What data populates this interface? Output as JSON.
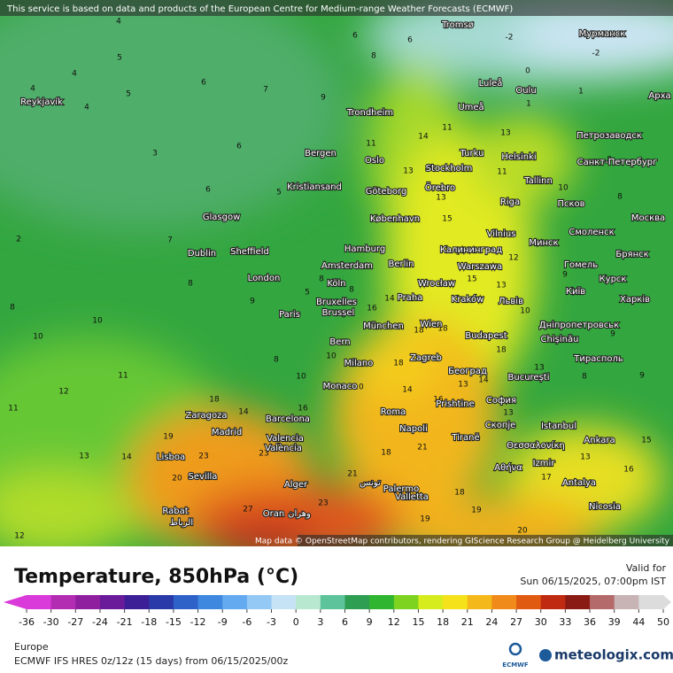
{
  "header": {
    "attribution": "This service is based on data and products of the European Centre for Medium-range Weather Forecasts (ECMWF)"
  },
  "map": {
    "cities": [
      "Tromsø",
      "Мурманск",
      "Luleå",
      "Oulu",
      "Арха",
      "Reykjavík",
      "Trondheim",
      "Umeå",
      "Петрозаводск",
      "Bergen",
      "Oslo",
      "Turku",
      "Helsinki",
      "Санкт-Петербург",
      "Stockholm",
      "Kristiansand",
      "Göteborg",
      "Örebro",
      "Tallinn",
      "Псков",
      "Glasgow",
      "København",
      "Riga",
      "Москва",
      "Vilnius",
      "Минск",
      "Смоленск",
      "Dublin",
      "Sheffield",
      "Hamburg",
      "Калининград",
      "Брянск",
      "Amsterdam",
      "Berlin",
      "Warszawa",
      "Гомель",
      "London",
      "Köln",
      "Wrocław",
      "Kraków",
      "Київ",
      "Курск",
      "Bruxelles",
      "Brussel",
      "Praha",
      "Львів",
      "Харків",
      "Paris",
      "München",
      "Wien",
      "Дніпропетровськ",
      "Bern",
      "Budapest",
      "Chișinău",
      "Milano",
      "Zagreb",
      "Тирасполь",
      "Београд",
      "București",
      "Monaco",
      "Prishtine",
      "София",
      "Zaragoza",
      "Roma",
      "Barcelona",
      "Istanbul",
      "Madrid",
      "Napoli",
      "Valencia",
      "València",
      "Скопје",
      "Tiranë",
      "Θεσσαλονίκη",
      "Ankara",
      "Lisboa",
      "Izmir",
      "Αθήνα",
      "Sevilla",
      "Alger",
      "تونس",
      "Antalya",
      "Palermo",
      "Valletta",
      "Rabat",
      "الرباط",
      "Oran",
      "وهران",
      "Nicosia"
    ],
    "temperature_labels": [
      6,
      8,
      6,
      4,
      5,
      4,
      4,
      4,
      5,
      3,
      6,
      7,
      6,
      6,
      5,
      9,
      11,
      14,
      13,
      11,
      13,
      15,
      13,
      11,
      1,
      1,
      0,
      -2,
      -2,
      10,
      8,
      8,
      2,
      7,
      8,
      9,
      8,
      10,
      10,
      11,
      12,
      11,
      13,
      14,
      19,
      23,
      20,
      23,
      27,
      23,
      21,
      18,
      21,
      16,
      13,
      13,
      19,
      19,
      18,
      17,
      13,
      16,
      15,
      20,
      14,
      16,
      18,
      14,
      10,
      10,
      10,
      18,
      14,
      18,
      13,
      15,
      14,
      10,
      12,
      9,
      9,
      9,
      8,
      13,
      18,
      8,
      8,
      8,
      5,
      8,
      18,
      14,
      16,
      12
    ],
    "credits": "Map data © OpenStreetMap contributors, rendering GIScience Research Group @ Heidelberg University"
  },
  "legend": {
    "title": "Temperature, 850hPa (°C)",
    "valid_label": "Valid for",
    "valid_time": "Sun 06/15/2025, 07:00pm IST",
    "ticks": [
      -36,
      -30,
      -27,
      -24,
      -21,
      -18,
      -15,
      -12,
      -9,
      -6,
      -3,
      0,
      3,
      6,
      9,
      12,
      15,
      18,
      21,
      24,
      27,
      30,
      33,
      36,
      39,
      44,
      50
    ],
    "colors": [
      "#d93ad9",
      "#b32db3",
      "#8f1f9f",
      "#6a1b9a",
      "#3c1e96",
      "#2a3aa8",
      "#2f62c8",
      "#3f88e0",
      "#64aaf0",
      "#94c8f5",
      "#c6e2f5",
      "#b8e8d0",
      "#5cc39a",
      "#2e9e52",
      "#2fb52f",
      "#7ed321",
      "#d6ec1c",
      "#f5e21a",
      "#f5b81a",
      "#f08a1a",
      "#e05a12",
      "#c02a10",
      "#8a1a14",
      "#b46a6a",
      "#c8b4b4",
      "#dcdcdc"
    ]
  },
  "footer": {
    "region": "Europe",
    "model": "ECMWF IFS HRES 0z/12z (15 days) from 06/15/2025/00z",
    "logo": "ECMWF",
    "brand": "meteologix.com"
  }
}
